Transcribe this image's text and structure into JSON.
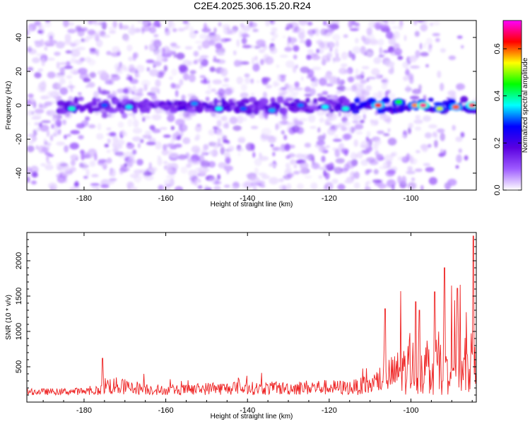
{
  "title": "C2E4.2025.306.15.20.R24",
  "chart_data": [
    {
      "type": "heatmap",
      "name": "spectrogram",
      "xlabel": "Height of straight line (km)",
      "ylabel": "Frequency (Hz)",
      "xlim": [
        -194,
        -84
      ],
      "ylim": [
        -50,
        50
      ],
      "xticks": [
        -180,
        -160,
        -140,
        -120,
        -100
      ],
      "yticks": [
        -40,
        -20,
        0,
        20,
        40
      ],
      "ridge": {
        "frequency_hz": 0,
        "start_km": -186,
        "end_km": -84
      },
      "colorbar": {
        "label": "Normalized spectral amplitude",
        "range": [
          0,
          0.72
        ],
        "ticks": [
          0.0,
          0.2,
          0.4,
          0.6
        ],
        "tick_labels": [
          "0.0",
          "0.2",
          "0.4",
          "0.6"
        ],
        "colors": [
          "#ffffff",
          "#9e5bff",
          "#5a00e0",
          "#0000ff",
          "#00ffff",
          "#00ff00",
          "#ffff00",
          "#ff0000",
          "#ff00ff"
        ]
      },
      "hotspots": [
        {
          "x": -183,
          "f": -2,
          "v": 0.38
        },
        {
          "x": -175,
          "f": 0,
          "v": 0.3
        },
        {
          "x": -169,
          "f": -1,
          "v": 0.35
        },
        {
          "x": -153,
          "f": 1,
          "v": 0.32
        },
        {
          "x": -147,
          "f": -2,
          "v": 0.36
        },
        {
          "x": -141,
          "f": -2,
          "v": 0.3
        },
        {
          "x": -134,
          "f": -3,
          "v": 0.33
        },
        {
          "x": -127,
          "f": 0,
          "v": 0.31
        },
        {
          "x": -121,
          "f": -1,
          "v": 0.36
        },
        {
          "x": -116,
          "f": -2,
          "v": 0.37
        },
        {
          "x": -108,
          "f": 0,
          "v": 0.62
        },
        {
          "x": -103,
          "f": 2,
          "v": 0.45
        },
        {
          "x": -99,
          "f": 0,
          "v": 0.58
        },
        {
          "x": -97,
          "f": 0,
          "v": 0.68
        },
        {
          "x": -93,
          "f": -2,
          "v": 0.52
        },
        {
          "x": -89,
          "f": -1,
          "v": 0.6
        },
        {
          "x": -85,
          "f": 0,
          "v": 0.66
        }
      ]
    },
    {
      "type": "line",
      "name": "snr",
      "xlabel": "Height of straight line (km)",
      "ylabel": "SNR (10 * v/v)",
      "xlim": [
        -194,
        -84
      ],
      "ylim": [
        0,
        2400
      ],
      "xticks": [
        -180,
        -160,
        -140,
        -120,
        -100
      ],
      "yticks": [
        500,
        1000,
        1500,
        2000
      ],
      "color": "#ee2222",
      "x_step_km": 0.15,
      "envelope_km": [
        -194,
        -176,
        -175.5,
        -160,
        -150,
        -130,
        -124,
        -115,
        -110,
        -106,
        -100,
        -95,
        -92,
        -88,
        -85,
        -84
      ],
      "envelope_snr": [
        260,
        300,
        620,
        330,
        430,
        450,
        500,
        480,
        600,
        1000,
        1550,
        1550,
        1900,
        1650,
        1700,
        2400
      ],
      "base_snr": 100,
      "peaks_km": [
        -175.5,
        -106.3,
        -102.5,
        -98.8,
        -97.9,
        -94.2,
        -91.8,
        -89.3,
        -88.6,
        -84.7
      ],
      "peaks_snr": [
        620,
        1320,
        1570,
        1420,
        1300,
        1560,
        1900,
        1440,
        1610,
        2350
      ]
    }
  ]
}
